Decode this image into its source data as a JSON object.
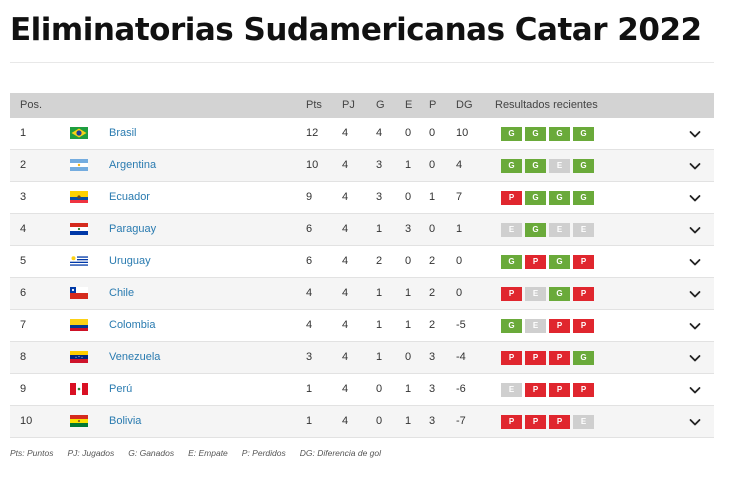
{
  "title": "Eliminatorias Sudamericanas Catar 2022",
  "columns": {
    "pos": "Pos.",
    "pts": "Pts",
    "pj": "PJ",
    "g": "G",
    "e": "E",
    "p": "P",
    "dg": "DG",
    "results": "Resultados recientes"
  },
  "colors": {
    "win": "#6aaa3a",
    "loss": "#e0262e",
    "draw": "#cfcfcf",
    "link": "#2a7bb0",
    "header_bg": "#d3d3d3"
  },
  "rows": [
    {
      "pos": "1",
      "team": "Brasil",
      "flag": "brazil",
      "pts": "12",
      "pj": "4",
      "g": "4",
      "e": "0",
      "p": "0",
      "dg": "10",
      "results": [
        "G",
        "G",
        "G",
        "G"
      ]
    },
    {
      "pos": "2",
      "team": "Argentina",
      "flag": "argentina",
      "pts": "10",
      "pj": "4",
      "g": "3",
      "e": "1",
      "p": "0",
      "dg": "4",
      "results": [
        "G",
        "G",
        "E",
        "G"
      ]
    },
    {
      "pos": "3",
      "team": "Ecuador",
      "flag": "ecuador",
      "pts": "9",
      "pj": "4",
      "g": "3",
      "e": "0",
      "p": "1",
      "dg": "7",
      "results": [
        "P",
        "G",
        "G",
        "G"
      ]
    },
    {
      "pos": "4",
      "team": "Paraguay",
      "flag": "paraguay",
      "pts": "6",
      "pj": "4",
      "g": "1",
      "e": "3",
      "p": "0",
      "dg": "1",
      "results": [
        "E",
        "G",
        "E",
        "E"
      ]
    },
    {
      "pos": "5",
      "team": "Uruguay",
      "flag": "uruguay",
      "pts": "6",
      "pj": "4",
      "g": "2",
      "e": "0",
      "p": "2",
      "dg": "0",
      "results": [
        "G",
        "P",
        "G",
        "P"
      ]
    },
    {
      "pos": "6",
      "team": "Chile",
      "flag": "chile",
      "pts": "4",
      "pj": "4",
      "g": "1",
      "e": "1",
      "p": "2",
      "dg": "0",
      "results": [
        "P",
        "E",
        "G",
        "P"
      ]
    },
    {
      "pos": "7",
      "team": "Colombia",
      "flag": "colombia",
      "pts": "4",
      "pj": "4",
      "g": "1",
      "e": "1",
      "p": "2",
      "dg": "-5",
      "results": [
        "G",
        "E",
        "P",
        "P"
      ]
    },
    {
      "pos": "8",
      "team": "Venezuela",
      "flag": "venezuela",
      "pts": "3",
      "pj": "4",
      "g": "1",
      "e": "0",
      "p": "3",
      "dg": "-4",
      "results": [
        "P",
        "P",
        "P",
        "G"
      ]
    },
    {
      "pos": "9",
      "team": "Perú",
      "flag": "peru",
      "pts": "1",
      "pj": "4",
      "g": "0",
      "e": "1",
      "p": "3",
      "dg": "-6",
      "results": [
        "E",
        "P",
        "P",
        "P"
      ]
    },
    {
      "pos": "10",
      "team": "Bolivia",
      "flag": "bolivia",
      "pts": "1",
      "pj": "4",
      "g": "0",
      "e": "1",
      "p": "3",
      "dg": "-7",
      "results": [
        "P",
        "P",
        "P",
        "E"
      ]
    }
  ],
  "legend": [
    "Pts: Puntos",
    "PJ: Jugados",
    "G: Ganados",
    "E: Empate",
    "P: Perdidos",
    "DG: Diferencia de gol"
  ]
}
